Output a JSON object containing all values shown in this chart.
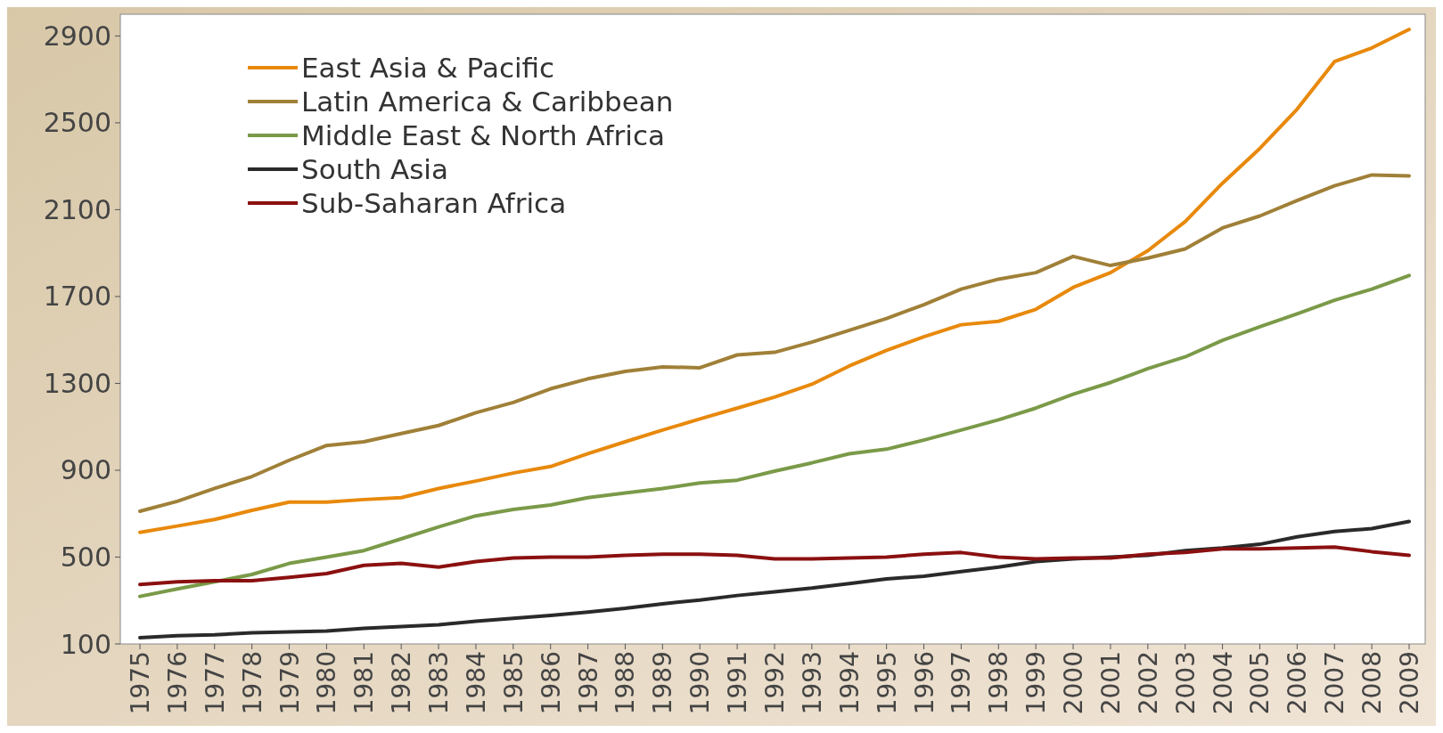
{
  "chart_data": {
    "type": "line",
    "categories": [
      "1975",
      "1976",
      "1977",
      "1978",
      "1979",
      "1980",
      "1981",
      "1982",
      "1983",
      "1984",
      "1985",
      "1986",
      "1987",
      "1988",
      "1989",
      "1990",
      "1991",
      "1992",
      "1993",
      "1994",
      "1995",
      "1996",
      "1997",
      "1998",
      "1999",
      "2000",
      "2001",
      "2002",
      "2003",
      "2004",
      "2005",
      "2006",
      "2007",
      "2008",
      "2009"
    ],
    "ylim": [
      100,
      3000
    ],
    "yticks": [
      100,
      500,
      900,
      1300,
      1700,
      2100,
      2500,
      2900
    ],
    "grid": false,
    "legend": "top left",
    "marker": "none",
    "line_style": "solid",
    "series": [
      {
        "name": "East Asia & Pacific",
        "color": "#e8890c",
        "values": [
          614,
          643,
          673,
          715,
          753,
          753,
          765,
          774,
          816,
          850,
          887,
          917,
          976,
          1031,
          1085,
          1136,
          1186,
          1237,
          1296,
          1380,
          1452,
          1515,
          1570,
          1586,
          1641,
          1742,
          1810,
          1911,
          2045,
          2222,
          2382,
          2563,
          2782,
          2845,
          2930
        ]
      },
      {
        "name": "Latin America & Caribbean",
        "color": "#a08038",
        "values": [
          711,
          757,
          816,
          871,
          946,
          1014,
          1031,
          1069,
          1106,
          1165,
          1212,
          1275,
          1321,
          1355,
          1376,
          1372,
          1431,
          1443,
          1490,
          1544,
          1599,
          1662,
          1734,
          1780,
          1810,
          1885,
          1843,
          1877,
          1919,
          2016,
          2071,
          2142,
          2210,
          2260,
          2256
        ]
      },
      {
        "name": "Middle East & North Africa",
        "color": "#7a9a48",
        "values": [
          319,
          353,
          386,
          420,
          471,
          500,
          530,
          584,
          639,
          690,
          719,
          740,
          774,
          795,
          816,
          841,
          854,
          896,
          934,
          976,
          997,
          1039,
          1085,
          1132,
          1186,
          1250,
          1304,
          1368,
          1422,
          1498,
          1561,
          1620,
          1683,
          1734,
          1797
        ]
      },
      {
        "name": "South Asia",
        "color": "#2a2a2a",
        "values": [
          129,
          138,
          142,
          151,
          155,
          159,
          172,
          180,
          188,
          205,
          218,
          231,
          247,
          264,
          285,
          302,
          323,
          340,
          357,
          378,
          399,
          412,
          433,
          454,
          479,
          492,
          500,
          508,
          530,
          542,
          559,
          593,
          618,
          631,
          664
        ]
      },
      {
        "name": "Sub-Saharan Africa",
        "color": "#8b1010",
        "values": [
          374,
          386,
          391,
          391,
          407,
          424,
          462,
          471,
          454,
          479,
          496,
          500,
          500,
          508,
          513,
          513,
          508,
          492,
          492,
          496,
          500,
          513,
          521,
          500,
          492,
          496,
          496,
          513,
          521,
          538,
          538,
          542,
          546,
          525,
          508
        ]
      }
    ]
  }
}
